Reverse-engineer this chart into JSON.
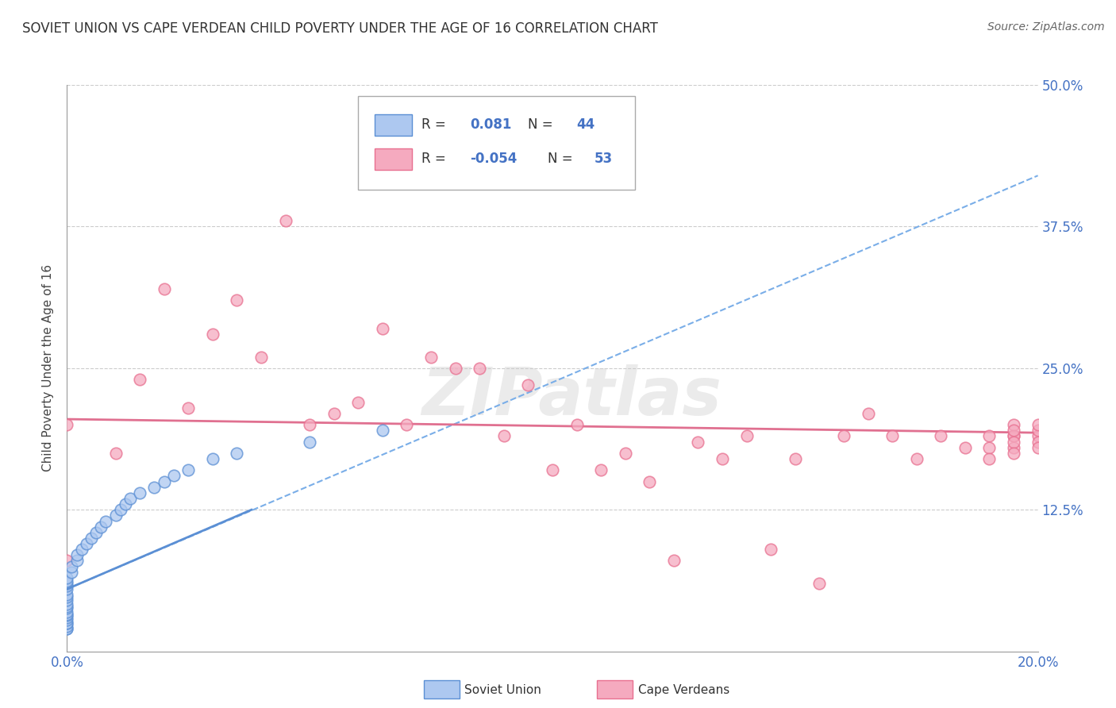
{
  "title": "SOVIET UNION VS CAPE VERDEAN CHILD POVERTY UNDER THE AGE OF 16 CORRELATION CHART",
  "source": "Source: ZipAtlas.com",
  "ylabel": "Child Poverty Under the Age of 16",
  "xlim": [
    0.0,
    0.2
  ],
  "ylim": [
    0.0,
    0.5
  ],
  "xticks": [
    0.0,
    0.05,
    0.1,
    0.15,
    0.2
  ],
  "xtick_labels": [
    "0.0%",
    "",
    "",
    "",
    "20.0%"
  ],
  "yticks": [
    0.0,
    0.125,
    0.25,
    0.375,
    0.5
  ],
  "ytick_labels": [
    "",
    "12.5%",
    "25.0%",
    "37.5%",
    "50.0%"
  ],
  "soviet_color": "#adc8f0",
  "cape_color": "#f5aabf",
  "soviet_edge_color": "#5b8fd4",
  "cape_edge_color": "#e87090",
  "soviet_trend_color": "#7aaee8",
  "cape_trend_color": "#e07090",
  "watermark": "ZIPatlas",
  "soviet_x": [
    0.0,
    0.0,
    0.0,
    0.0,
    0.0,
    0.0,
    0.0,
    0.0,
    0.0,
    0.0,
    0.0,
    0.0,
    0.0,
    0.0,
    0.0,
    0.0,
    0.0,
    0.0,
    0.0,
    0.0,
    0.0,
    0.001,
    0.001,
    0.002,
    0.002,
    0.003,
    0.004,
    0.005,
    0.006,
    0.007,
    0.008,
    0.01,
    0.011,
    0.012,
    0.013,
    0.015,
    0.018,
    0.02,
    0.022,
    0.025,
    0.03,
    0.035,
    0.05,
    0.065
  ],
  "soviet_y": [
    0.02,
    0.02,
    0.022,
    0.025,
    0.025,
    0.028,
    0.03,
    0.032,
    0.033,
    0.035,
    0.038,
    0.04,
    0.042,
    0.045,
    0.048,
    0.05,
    0.055,
    0.058,
    0.06,
    0.062,
    0.065,
    0.07,
    0.075,
    0.08,
    0.085,
    0.09,
    0.095,
    0.1,
    0.105,
    0.11,
    0.115,
    0.12,
    0.125,
    0.13,
    0.135,
    0.14,
    0.145,
    0.15,
    0.155,
    0.16,
    0.17,
    0.175,
    0.185,
    0.195
  ],
  "cape_x": [
    0.0,
    0.0,
    0.01,
    0.015,
    0.02,
    0.025,
    0.03,
    0.035,
    0.04,
    0.045,
    0.05,
    0.055,
    0.06,
    0.065,
    0.07,
    0.075,
    0.08,
    0.085,
    0.09,
    0.095,
    0.1,
    0.105,
    0.11,
    0.115,
    0.12,
    0.125,
    0.13,
    0.135,
    0.14,
    0.145,
    0.15,
    0.155,
    0.16,
    0.165,
    0.17,
    0.175,
    0.18,
    0.185,
    0.19,
    0.19,
    0.19,
    0.195,
    0.195,
    0.195,
    0.195,
    0.195,
    0.195,
    0.195,
    0.2,
    0.2,
    0.2,
    0.2,
    0.2
  ],
  "cape_y": [
    0.2,
    0.08,
    0.175,
    0.24,
    0.32,
    0.215,
    0.28,
    0.31,
    0.26,
    0.38,
    0.2,
    0.21,
    0.22,
    0.285,
    0.2,
    0.26,
    0.25,
    0.25,
    0.19,
    0.235,
    0.16,
    0.2,
    0.16,
    0.175,
    0.15,
    0.08,
    0.185,
    0.17,
    0.19,
    0.09,
    0.17,
    0.06,
    0.19,
    0.21,
    0.19,
    0.17,
    0.19,
    0.18,
    0.19,
    0.18,
    0.17,
    0.19,
    0.18,
    0.19,
    0.2,
    0.185,
    0.195,
    0.175,
    0.19,
    0.185,
    0.195,
    0.18,
    0.2
  ],
  "soviet_trend_x0": 0.0,
  "soviet_trend_y0": 0.055,
  "soviet_trend_x1": 0.2,
  "soviet_trend_y1": 0.42,
  "cape_trend_x0": 0.0,
  "cape_trend_y0": 0.205,
  "cape_trend_x1": 0.2,
  "cape_trend_y1": 0.193,
  "soviet_short_line_x0": 0.0,
  "soviet_short_line_y0": 0.055,
  "soviet_short_line_x1": 0.038,
  "soviet_short_line_y1": 0.125
}
